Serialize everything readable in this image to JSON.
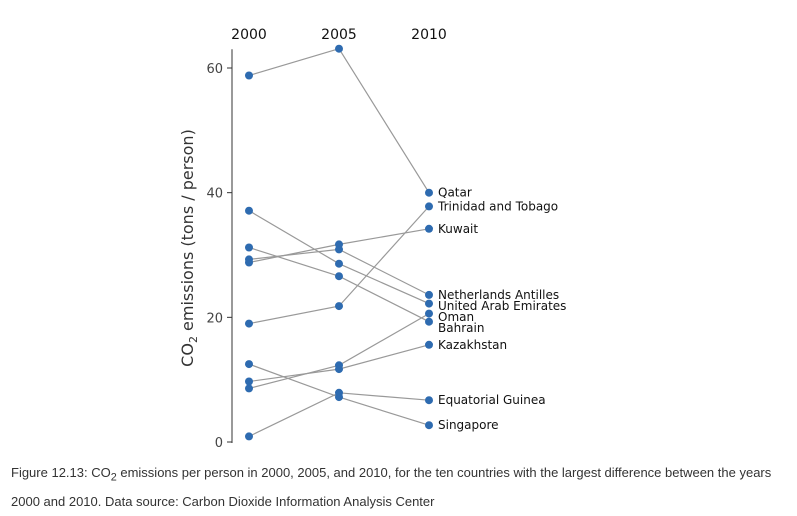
{
  "chart_data": {
    "type": "slope",
    "x": [
      "2000",
      "2005",
      "2010"
    ],
    "ylabel_main": "CO",
    "ylabel_sub": "2",
    "ylabel_rest": " emissions (tons / person)",
    "ylim": [
      0,
      63
    ],
    "yticks": [
      0,
      20,
      40,
      60
    ],
    "grid": false,
    "point_color": "#2e6bb0",
    "line_color": "#999999",
    "series": [
      {
        "name": "Qatar",
        "values": [
          58.8,
          63.1,
          40.0
        ]
      },
      {
        "name": "Trinidad and Tobago",
        "values": [
          19.0,
          21.8,
          37.8
        ]
      },
      {
        "name": "Kuwait",
        "values": [
          28.8,
          31.7,
          34.2
        ]
      },
      {
        "name": "Netherlands Antilles",
        "values": [
          29.3,
          30.9,
          23.6
        ]
      },
      {
        "name": "United Arab Emirates",
        "values": [
          37.1,
          28.6,
          22.2
        ]
      },
      {
        "name": "Oman",
        "values": [
          8.6,
          12.3,
          20.6
        ]
      },
      {
        "name": "Bahrain",
        "values": [
          31.2,
          26.6,
          19.3
        ]
      },
      {
        "name": "Kazakhstan",
        "values": [
          9.7,
          11.7,
          15.6
        ]
      },
      {
        "name": "Equatorial Guinea",
        "values": [
          0.9,
          7.9,
          6.7
        ]
      },
      {
        "name": "Singapore",
        "values": [
          12.5,
          7.2,
          2.7
        ]
      }
    ]
  },
  "caption": {
    "prefix": "Figure 12.13: CO",
    "sub": "2",
    "rest": " emissions per person in 2000, 2005, and 2010, for the ten countries with the largest difference between the years 2000 and 2010. Data source: Carbon Dioxide Information Analysis Center"
  }
}
